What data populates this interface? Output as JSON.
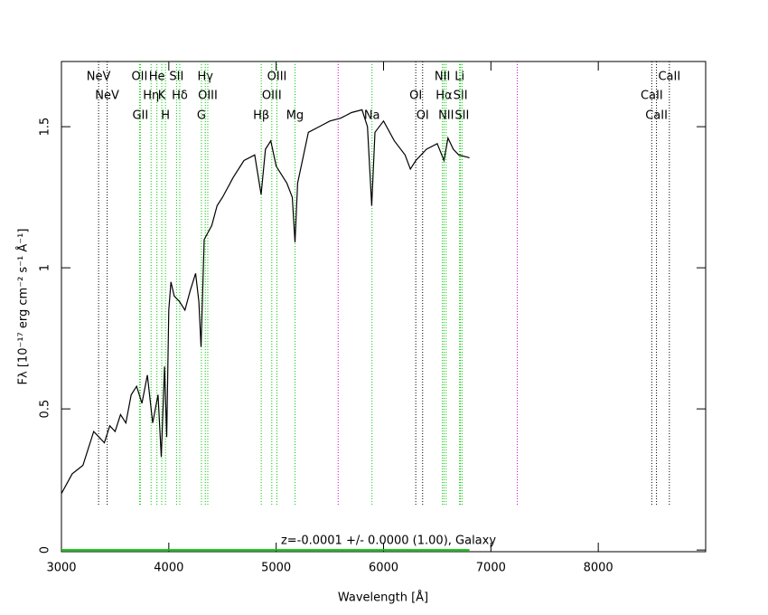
{
  "chart_data": {
    "type": "line",
    "xlabel": "Wavelength [Å]",
    "ylabel": "Fλ [10⁻¹⁷ erg cm⁻² s⁻¹ Å⁻¹]",
    "annotation": "z=-0.0001 +/- 0.0000 (1.00), Galaxy",
    "xlim": [
      3000,
      9000
    ],
    "ylim": [
      -0.006,
      1.731
    ],
    "xticks": [
      3000,
      4000,
      5000,
      6000,
      7000,
      8000
    ],
    "yticks": [
      0,
      0.5,
      1,
      1.5
    ],
    "x": [
      3000,
      3100,
      3200,
      3300,
      3350,
      3400,
      3450,
      3500,
      3550,
      3600,
      3650,
      3700,
      3750,
      3800,
      3850,
      3900,
      3930,
      3960,
      3980,
      4000,
      4020,
      4050,
      4100,
      4150,
      4200,
      4250,
      4280,
      4300,
      4330,
      4400,
      4450,
      4500,
      4600,
      4700,
      4800,
      4860,
      4900,
      4950,
      5000,
      5100,
      5150,
      5175,
      5200,
      5300,
      5400,
      5500,
      5600,
      5700,
      5800,
      5850,
      5890,
      5920,
      6000,
      6100,
      6200,
      6250,
      6300,
      6400,
      6500,
      6563,
      6600,
      6650,
      6700,
      6800
    ],
    "series": [
      {
        "color": "#000000",
        "values": [
          0.2,
          0.27,
          0.3,
          0.42,
          0.4,
          0.38,
          0.44,
          0.42,
          0.48,
          0.45,
          0.55,
          0.58,
          0.52,
          0.62,
          0.45,
          0.55,
          0.33,
          0.65,
          0.4,
          0.85,
          0.95,
          0.9,
          0.88,
          0.85,
          0.92,
          0.98,
          0.88,
          0.72,
          1.1,
          1.15,
          1.22,
          1.25,
          1.32,
          1.38,
          1.4,
          1.26,
          1.42,
          1.45,
          1.36,
          1.3,
          1.25,
          1.09,
          1.3,
          1.48,
          1.5,
          1.52,
          1.53,
          1.55,
          1.56,
          1.5,
          1.22,
          1.48,
          1.52,
          1.45,
          1.4,
          1.35,
          1.38,
          1.42,
          1.44,
          1.38,
          1.46,
          1.42,
          1.4,
          1.39
        ]
      }
    ],
    "lines": [
      {
        "wavelength": 3346,
        "color": "#000000",
        "label": "NeV"
      },
      {
        "wavelength": 3426,
        "color": "#000000",
        "label": "NeV"
      },
      {
        "wavelength": 3727,
        "color": "#00cc00",
        "label": "OII"
      },
      {
        "wavelength": 3735,
        "color": "#00cc00",
        "label": "GII"
      },
      {
        "wavelength": 3835,
        "color": "#00cc00",
        "label": "Hη"
      },
      {
        "wavelength": 3889,
        "color": "#00cc00",
        "label": "He"
      },
      {
        "wavelength": 3934,
        "color": "#00cc00",
        "label": "K"
      },
      {
        "wavelength": 3969,
        "color": "#00cc00",
        "label": "H"
      },
      {
        "wavelength": 4072,
        "color": "#00cc00",
        "label": "SII"
      },
      {
        "wavelength": 4102,
        "color": "#00cc00",
        "label": "Hδ"
      },
      {
        "wavelength": 4304,
        "color": "#00cc00",
        "label": "G"
      },
      {
        "wavelength": 4340,
        "color": "#00cc00",
        "label": "Hγ"
      },
      {
        "wavelength": 4363,
        "color": "#00cc00",
        "label": "OIII"
      },
      {
        "wavelength": 4861,
        "color": "#00cc00",
        "label": "Hβ"
      },
      {
        "wavelength": 4959,
        "color": "#00cc00",
        "label": "OIII"
      },
      {
        "wavelength": 5007,
        "color": "#00cc00",
        "label": "OIII"
      },
      {
        "wavelength": 5175,
        "color": "#00cc00",
        "label": "Mg"
      },
      {
        "wavelength": 5577,
        "color": "#cc00cc"
      },
      {
        "wavelength": 5892,
        "color": "#00cc00",
        "label": "Na"
      },
      {
        "wavelength": 6300,
        "color": "#000000",
        "label": "OI"
      },
      {
        "wavelength": 6364,
        "color": "#000000",
        "label": "OI"
      },
      {
        "wavelength": 6548,
        "color": "#00cc00",
        "label": "NII"
      },
      {
        "wavelength": 6563,
        "color": "#00cc00",
        "label": "Hα"
      },
      {
        "wavelength": 6583,
        "color": "#00cc00",
        "label": "NII"
      },
      {
        "wavelength": 6708,
        "color": "#00cc00",
        "label": "Li"
      },
      {
        "wavelength": 6716,
        "color": "#00cc00",
        "label": "SII"
      },
      {
        "wavelength": 6731,
        "color": "#00cc00",
        "label": "SII"
      },
      {
        "wavelength": 7246,
        "color": "#cc00cc"
      },
      {
        "wavelength": 8498,
        "color": "#000000",
        "label": "CaII"
      },
      {
        "wavelength": 8542,
        "color": "#000000",
        "label": "CaII"
      },
      {
        "wavelength": 8662,
        "color": "#000000",
        "label": "CaII"
      }
    ]
  }
}
